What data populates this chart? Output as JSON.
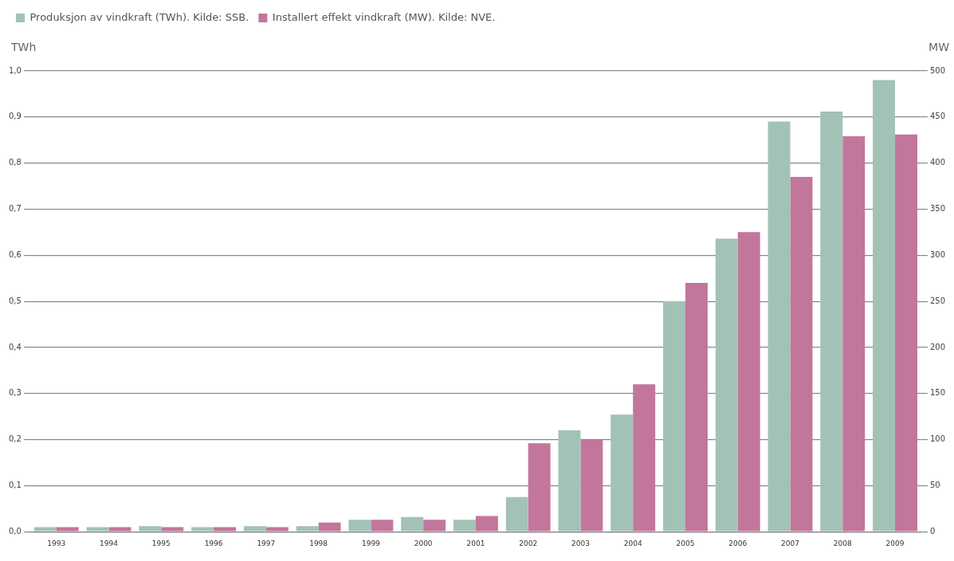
{
  "chart_data": {
    "type": "bar",
    "ylabel": "TWh",
    "y2label": "MW",
    "categories": [
      "1993",
      "1994",
      "1995",
      "1996",
      "1997",
      "1998",
      "1999",
      "2000",
      "2001",
      "2002",
      "2003",
      "2004",
      "2005",
      "2006",
      "2007",
      "2008",
      "2009"
    ],
    "series": [
      {
        "name": "Produksjon av vindkraft (TWh). Kilde: SSB.",
        "color": "#a3c2b6",
        "values": [
          0.01,
          0.01,
          0.012,
          0.01,
          0.012,
          0.012,
          0.026,
          0.032,
          0.026,
          0.075,
          0.22,
          0.254,
          0.5,
          0.636,
          0.89,
          0.912,
          0.98
        ]
      },
      {
        "name": "Installert effekt vindkraft (MW). Kilde: NVE.",
        "color": "#c2769c",
        "axis": "y2",
        "values": [
          5,
          5,
          5,
          5,
          5,
          10,
          13,
          13,
          17,
          96,
          100,
          160,
          270,
          325,
          385,
          429,
          431
        ]
      }
    ],
    "ylim": [
      0,
      1
    ],
    "yticks": [
      {
        "value": 0,
        "label": "0,0"
      },
      {
        "value": 0.1,
        "label": "0,1"
      },
      {
        "value": 0.2,
        "label": "0,2"
      },
      {
        "value": 0.3,
        "label": "0,3"
      },
      {
        "value": 0.4,
        "label": "0,4"
      },
      {
        "value": 0.5,
        "label": "0,5"
      },
      {
        "value": 0.6,
        "label": "0,6"
      },
      {
        "value": 0.7,
        "label": "0,7"
      },
      {
        "value": 0.8,
        "label": "0,8"
      },
      {
        "value": 0.9,
        "label": "0,9"
      },
      {
        "value": 1,
        "label": "1,0"
      }
    ],
    "y2lim": [
      0,
      500
    ],
    "y2ticks": [
      0,
      50,
      100,
      150,
      200,
      250,
      300,
      350,
      400,
      450,
      500
    ],
    "grid": "y",
    "legend": "top left"
  }
}
